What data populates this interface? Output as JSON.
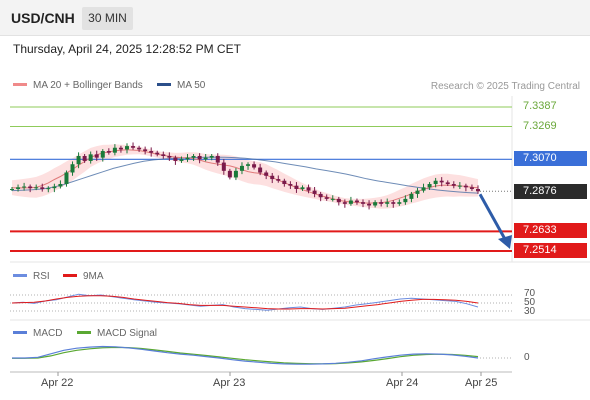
{
  "header": {
    "symbol": "USD/CNH",
    "interval": "30 MIN"
  },
  "timestamp": "Thursday, April 24, 2025 12:28:52 PM CET",
  "legend": {
    "ma_bb": "MA 20 + Bollinger Bands",
    "ma50": "MA 50",
    "rsi": "RSI",
    "rsi_ma": "9MA",
    "macd": "MACD",
    "macd_signal": "MACD Signal"
  },
  "credit": "Research © 2025 Trading Central",
  "levels": {
    "r2": "7.3387",
    "r1": "7.3269",
    "pivot": "7.3070",
    "last": "7.2876",
    "s1": "7.2633",
    "s2": "7.2514"
  },
  "rsi_ticks": [
    "70",
    "50",
    "30"
  ],
  "macd_zero": "0",
  "x_axis": [
    "Apr 22",
    "Apr 23",
    "Apr 24",
    "Apr 25"
  ],
  "colors": {
    "resistance": "#8fcb5a",
    "pivot": "#3a6fd8",
    "support": "#e11a1a",
    "last": "#2b2b2b",
    "bullish": "#1a7a3a",
    "bearish": "#7a1a4a",
    "ma": "#e07a7a",
    "ma50": "#4a6fa5",
    "bands": "#fcd6d6",
    "rsi": "#6c8de0",
    "macd": "#5a7fd8",
    "macd_signal": "#5aa832",
    "arrow": "#2e5ca8"
  },
  "chart_data": {
    "type": "candlestick",
    "interval": "30 MIN",
    "close_series": [
      7.289,
      7.29,
      7.2905,
      7.2895,
      7.29,
      7.289,
      7.2895,
      7.2905,
      7.292,
      7.299,
      7.304,
      7.309,
      7.306,
      7.31,
      7.308,
      7.312,
      7.311,
      7.314,
      7.313,
      7.315,
      7.314,
      7.313,
      7.312,
      7.311,
      7.31,
      7.309,
      7.308,
      7.306,
      7.307,
      7.308,
      7.309,
      7.307,
      7.308,
      7.309,
      7.305,
      7.3,
      7.296,
      7.3,
      7.303,
      7.304,
      7.302,
      7.299,
      7.297,
      7.295,
      7.294,
      7.292,
      7.291,
      7.289,
      7.29,
      7.288,
      7.286,
      7.284,
      7.283,
      7.283,
      7.281,
      7.28,
      7.282,
      7.281,
      7.28,
      7.279,
      7.281,
      7.28,
      7.281,
      7.28,
      7.281,
      7.283,
      7.286,
      7.288,
      7.29,
      7.292,
      7.294,
      7.293,
      7.292,
      7.291,
      7.291,
      7.29,
      7.289,
      7.2876
    ],
    "ma50": [
      7.288,
      7.2882,
      7.2885,
      7.289,
      7.29,
      7.2915,
      7.2935,
      7.2955,
      7.2975,
      7.2995,
      7.3015,
      7.303,
      7.3045,
      7.3058,
      7.3066,
      7.3072,
      7.3076,
      7.3078,
      7.308,
      7.3082,
      7.3083,
      7.3082,
      7.308,
      7.3076,
      7.307,
      7.3062,
      7.3054,
      7.3044,
      7.3034,
      7.3024,
      7.3012,
      7.3002,
      7.2992,
      7.298,
      7.2966,
      7.2952,
      7.294,
      7.293,
      7.292,
      7.291,
      7.29,
      7.2892,
      7.2884,
      7.2878,
      7.2872,
      7.2868,
      7.2865
    ],
    "levels": {
      "resistance_2": 7.3387,
      "resistance_1": 7.3269,
      "pivot": 7.307,
      "last": 7.2876,
      "support_1": 7.2633,
      "support_2": 7.2514
    },
    "arrow": {
      "from": 7.2876,
      "to": 7.2514
    },
    "rsi": {
      "levels": [
        70,
        50,
        30
      ],
      "rsi": [
        50,
        52,
        49,
        55,
        58,
        65,
        72,
        68,
        70,
        66,
        62,
        58,
        55,
        52,
        50,
        48,
        45,
        42,
        44,
        46,
        40,
        36,
        34,
        32,
        35,
        38,
        40,
        36,
        34,
        37,
        40,
        45,
        48,
        52,
        56,
        60,
        62,
        60,
        58,
        56,
        54,
        48,
        40
      ],
      "ma9": [
        50,
        51,
        52,
        55,
        60,
        64,
        67,
        68,
        68,
        67,
        64,
        60,
        57,
        54,
        51,
        49,
        46,
        44,
        44,
        44,
        42,
        40,
        38,
        36,
        35,
        35,
        36,
        36,
        35,
        36,
        37,
        40,
        43,
        46,
        50,
        54,
        57,
        59,
        59,
        58,
        57,
        54,
        50
      ]
    },
    "macd": {
      "zero_label": "0",
      "macd": [
        0.0,
        0.0,
        0.05,
        0.3,
        0.55,
        0.7,
        0.78,
        0.82,
        0.8,
        0.72,
        0.62,
        0.5,
        0.38,
        0.28,
        0.2,
        0.1,
        0.0,
        -0.12,
        -0.22,
        -0.3,
        -0.38,
        -0.42,
        -0.44,
        -0.44,
        -0.42,
        -0.38,
        -0.3,
        -0.2,
        -0.05,
        0.08,
        0.2,
        0.28,
        0.3,
        0.28,
        0.22,
        0.12,
        0.0
      ],
      "signal": [
        -0.02,
        -0.02,
        0.0,
        0.15,
        0.38,
        0.55,
        0.66,
        0.73,
        0.76,
        0.74,
        0.68,
        0.58,
        0.47,
        0.36,
        0.27,
        0.18,
        0.08,
        -0.02,
        -0.12,
        -0.2,
        -0.28,
        -0.34,
        -0.38,
        -0.41,
        -0.42,
        -0.4,
        -0.35,
        -0.28,
        -0.17,
        -0.04,
        0.09,
        0.19,
        0.25,
        0.27,
        0.25,
        0.19,
        0.1
      ]
    },
    "x_labels": [
      "Apr 22",
      "Apr 23",
      "Apr 24",
      "Apr 25"
    ]
  }
}
